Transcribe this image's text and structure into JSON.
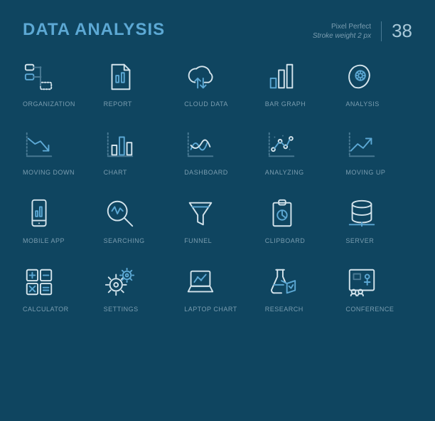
{
  "header": {
    "title": "DATA ANALYSIS",
    "meta_line1": "Pixel Perfect",
    "meta_line2": "Stroke weight 2 px",
    "count": "38"
  },
  "colors": {
    "bg": "#0f4560",
    "title": "#5ca8d4",
    "label": "#7a9db0",
    "stroke_light": "#d4e4ec",
    "stroke_accent": "#5ca8d4",
    "stroke_dim": "#4a7a94"
  },
  "icons": [
    {
      "name": "organization",
      "label": "ORGANIZATION"
    },
    {
      "name": "report",
      "label": "REPORT"
    },
    {
      "name": "cloud-data",
      "label": "CLOUD DATA"
    },
    {
      "name": "bar-graph",
      "label": "BAR GRAPH"
    },
    {
      "name": "analysis",
      "label": "ANALYSIS"
    },
    {
      "name": "moving-down",
      "label": "MOVING DOWN"
    },
    {
      "name": "chart",
      "label": "CHART"
    },
    {
      "name": "dashboard",
      "label": "DASHBOARD"
    },
    {
      "name": "analyzing",
      "label": "ANALYZING"
    },
    {
      "name": "moving-up",
      "label": "MOVING UP"
    },
    {
      "name": "mobile-app",
      "label": "MOBILE APP"
    },
    {
      "name": "searching",
      "label": "SEARCHING"
    },
    {
      "name": "funnel",
      "label": "FUNNEL"
    },
    {
      "name": "clipboard",
      "label": "CLIPBOARD"
    },
    {
      "name": "server",
      "label": "SERVER"
    },
    {
      "name": "calculator",
      "label": "CALCULATOR"
    },
    {
      "name": "settings",
      "label": "SETTINGS"
    },
    {
      "name": "laptop-chart",
      "label": "LAPTOP CHART"
    },
    {
      "name": "research",
      "label": "RESEARCH"
    },
    {
      "name": "conference",
      "label": "CONFERENCE"
    }
  ],
  "icon_style": {
    "size": 46,
    "stroke_width": 2
  }
}
